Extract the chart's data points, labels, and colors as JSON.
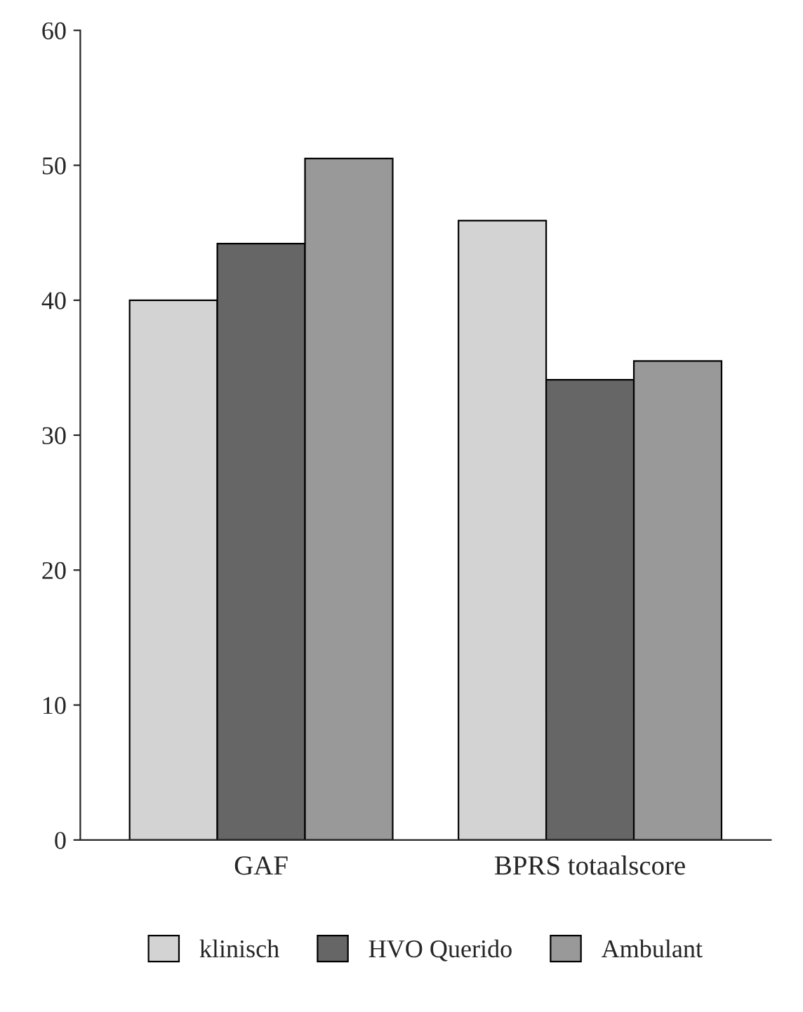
{
  "chart_data": {
    "type": "bar",
    "categories": [
      "GAF",
      "BPRS totaalscore"
    ],
    "series": [
      {
        "name": "klinisch",
        "color": "#d3d3d3",
        "values": [
          40.0,
          45.9
        ]
      },
      {
        "name": "HVO Querido",
        "color": "#666666",
        "values": [
          44.2,
          34.1
        ]
      },
      {
        "name": "Ambulant",
        "color": "#999999",
        "values": [
          50.5,
          35.5
        ]
      }
    ],
    "ylim": [
      0,
      60
    ],
    "yticks": [
      0,
      10,
      20,
      30,
      40,
      50,
      60
    ],
    "grid": false,
    "legend": "bottom"
  }
}
